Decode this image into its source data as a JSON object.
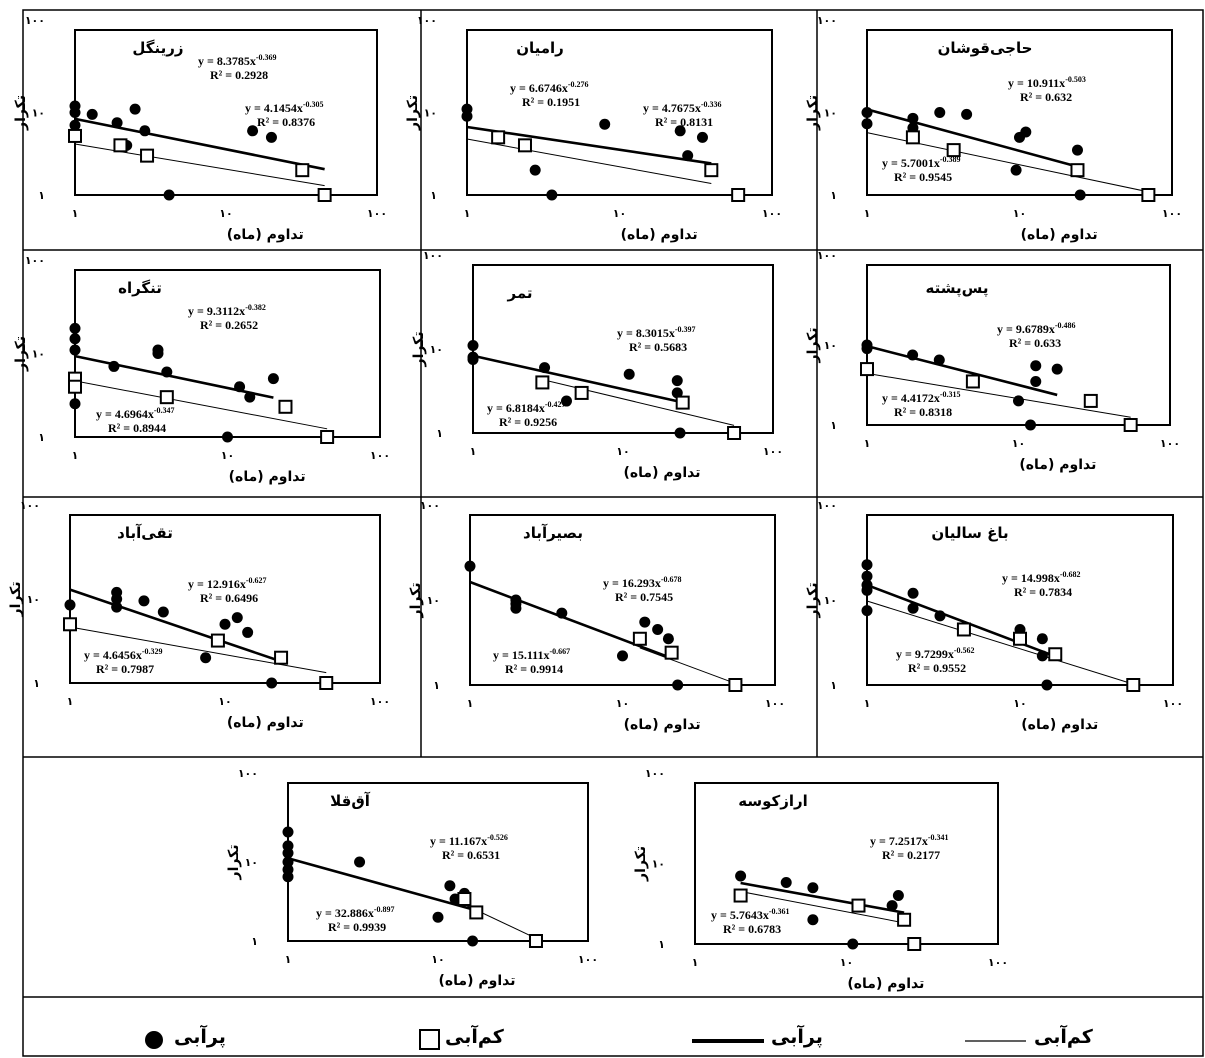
{
  "legend": {
    "wet_points_label": "پرآبی",
    "dry_points_label": "کم‌آبی",
    "wet_line_label": "پرآبی",
    "dry_line_label": "کم‌آبی"
  },
  "chart_data": [
    {
      "type": "scatter",
      "title": "زرینگل",
      "xlabel": "تداوم (ماه)",
      "ylabel": "تکرار",
      "x_ticks": [
        "۱",
        "۱۰",
        "۱۰۰"
      ],
      "y_ticks": [
        "۱",
        "۱۰",
        "۱۰۰"
      ],
      "log_scale": true,
      "xlim": [
        1,
        100
      ],
      "ylim": [
        1,
        100
      ],
      "wet_points": [
        [
          1,
          12
        ],
        [
          1,
          10
        ],
        [
          1,
          7
        ],
        [
          1.3,
          9.5
        ],
        [
          1.9,
          7.5
        ],
        [
          2.2,
          4
        ],
        [
          2.5,
          11
        ],
        [
          2.9,
          6
        ],
        [
          4.2,
          1
        ],
        [
          15,
          6
        ],
        [
          20,
          5
        ]
      ],
      "dry_points": [
        [
          1,
          5.2
        ],
        [
          2,
          4
        ],
        [
          3,
          3
        ],
        [
          32,
          2
        ],
        [
          45,
          1
        ]
      ],
      "wet_fit": {
        "equation": "y = 8.3785x",
        "exponent": "-0.369",
        "r2": "R² = 0.2928",
        "a": 8.3785,
        "b": -0.369,
        "xrange": [
          1,
          45
        ]
      },
      "dry_fit": {
        "equation": "y = 4.1454x",
        "exponent": "-0.305",
        "r2": "R² = 0.8376",
        "a": 4.1454,
        "b": -0.305,
        "xrange": [
          1,
          45
        ]
      }
    },
    {
      "type": "scatter",
      "title": "رامیان",
      "xlabel": "تداوم (ماه)",
      "ylabel": "تکرار",
      "x_ticks": [
        "۱",
        "۱۰",
        "۱۰۰"
      ],
      "y_ticks": [
        "۱",
        "۱۰",
        "۱۰۰"
      ],
      "log_scale": true,
      "xlim": [
        1,
        100
      ],
      "ylim": [
        1,
        100
      ],
      "wet_points": [
        [
          1,
          11
        ],
        [
          1,
          9
        ],
        [
          2.8,
          2
        ],
        [
          3.6,
          1
        ],
        [
          8,
          7.2
        ],
        [
          25,
          6
        ],
        [
          28,
          3
        ],
        [
          35,
          5
        ]
      ],
      "dry_points": [
        [
          1.6,
          5
        ],
        [
          2.4,
          4
        ],
        [
          40,
          2
        ],
        [
          60,
          1
        ]
      ],
      "wet_fit": {
        "equation": "y = 6.6746x",
        "exponent": "-0.276",
        "r2": "R² = 0.1951",
        "a": 6.6746,
        "b": -0.276,
        "xrange": [
          1,
          40
        ]
      },
      "dry_fit": {
        "equation": "y = 4.7675x",
        "exponent": "-0.336",
        "r2": "R² = 0.8131",
        "a": 4.7675,
        "b": -0.336,
        "xrange": [
          1,
          40
        ]
      }
    },
    {
      "type": "scatter",
      "title": "حاجی‌قوشان",
      "xlabel": "تداوم (ماه)",
      "ylabel": "تکرار",
      "x_ticks": [
        "۱",
        "۱۰",
        "۱۰۰"
      ],
      "y_ticks": [
        "۱",
        "۱۰",
        "۱۰۰"
      ],
      "log_scale": true,
      "xlim": [
        1,
        100
      ],
      "ylim": [
        1,
        100
      ],
      "wet_points": [
        [
          1,
          10
        ],
        [
          1,
          7.3
        ],
        [
          2,
          8.5
        ],
        [
          2,
          6.5
        ],
        [
          3,
          10
        ],
        [
          4.5,
          9.5
        ],
        [
          9.5,
          2
        ],
        [
          10,
          5
        ],
        [
          11,
          5.8
        ],
        [
          24,
          3.5
        ],
        [
          25,
          1
        ]
      ],
      "dry_points": [
        [
          2,
          5
        ],
        [
          3.7,
          3.5
        ],
        [
          24,
          2
        ],
        [
          70,
          1
        ]
      ],
      "wet_fit": {
        "equation": "y = 10.911x",
        "exponent": "-0.503",
        "r2": "R² = 0.632",
        "a": 10.911,
        "b": -0.503,
        "xrange": [
          1,
          25
        ]
      },
      "dry_fit": {
        "equation": "y = 5.7001x",
        "exponent": "-0.389",
        "r2": "R² = 0.9545",
        "a": 5.7001,
        "b": -0.389,
        "xrange": [
          1,
          70
        ]
      }
    },
    {
      "type": "scatter",
      "title": "تنگراه",
      "xlabel": "تداوم (ماه)",
      "ylabel": "تکرار",
      "x_ticks": [
        "۱",
        "۱۰",
        "۱۰۰"
      ],
      "y_ticks": [
        "۱",
        "۱۰",
        "۱۰۰"
      ],
      "log_scale": true,
      "xlim": [
        1,
        100
      ],
      "ylim": [
        1,
        100
      ],
      "wet_points": [
        [
          1,
          20
        ],
        [
          1,
          15
        ],
        [
          1,
          11
        ],
        [
          1,
          2.5
        ],
        [
          1.8,
          7
        ],
        [
          3.5,
          11
        ],
        [
          3.5,
          10
        ],
        [
          4,
          6
        ],
        [
          10,
          1
        ],
        [
          12,
          4
        ],
        [
          14,
          3
        ],
        [
          20,
          5
        ]
      ],
      "dry_points": [
        [
          1,
          5
        ],
        [
          1,
          4
        ],
        [
          4,
          3
        ],
        [
          24,
          2.3
        ],
        [
          45,
          1
        ]
      ],
      "wet_fit": {
        "equation": "y = 9.3112x",
        "exponent": "-0.382",
        "r2": "R² = 0.2652",
        "a": 9.3112,
        "b": -0.382,
        "xrange": [
          1,
          20
        ]
      },
      "dry_fit": {
        "equation": "y = 4.6964x",
        "exponent": "-0.347",
        "r2": "R² = 0.8944",
        "a": 4.6964,
        "b": -0.347,
        "xrange": [
          1,
          45
        ]
      }
    },
    {
      "type": "scatter",
      "title": "تمر",
      "xlabel": "تداوم (ماه)",
      "ylabel": "تکرار",
      "x_ticks": [
        "۱",
        "۱۰",
        "۱۰۰"
      ],
      "y_ticks": [
        "۱",
        "۱۰",
        "۱۰۰"
      ],
      "log_scale": true,
      "xlim": [
        1,
        100
      ],
      "ylim": [
        1,
        100
      ],
      "wet_points": [
        [
          1,
          11
        ],
        [
          1,
          8
        ],
        [
          1,
          7.5
        ],
        [
          3,
          6
        ],
        [
          4.2,
          2.4
        ],
        [
          11,
          5
        ],
        [
          23,
          4.2
        ],
        [
          23,
          3
        ],
        [
          24,
          1
        ]
      ],
      "dry_points": [
        [
          2.9,
          4
        ],
        [
          5.3,
          3
        ],
        [
          25,
          2.3
        ],
        [
          55,
          1
        ]
      ],
      "wet_fit": {
        "equation": "y = 8.3015x",
        "exponent": "-0.397",
        "r2": "R² = 0.5683",
        "a": 8.3015,
        "b": -0.397,
        "xrange": [
          1,
          25
        ]
      },
      "dry_fit": {
        "equation": "y = 6.8184x",
        "exponent": "-0.427",
        "r2": "R² = 0.9256",
        "a": 6.8184,
        "b": -0.427,
        "xrange": [
          2.9,
          55
        ]
      }
    },
    {
      "type": "scatter",
      "title": "پس‌پشته",
      "xlabel": "تداوم (ماه)",
      "ylabel": "تکرار",
      "x_ticks": [
        "۱",
        "۱۰",
        "۱۰۰"
      ],
      "y_ticks": [
        "۱",
        "۱۰",
        "۱۰۰"
      ],
      "log_scale": true,
      "xlim": [
        1,
        100
      ],
      "ylim": [
        1,
        100
      ],
      "wet_points": [
        [
          1,
          10
        ],
        [
          1,
          9
        ],
        [
          2,
          7.5
        ],
        [
          3,
          6.5
        ],
        [
          10,
          2
        ],
        [
          12,
          1
        ],
        [
          13,
          5.5
        ],
        [
          13,
          3.5
        ],
        [
          18,
          5
        ]
      ],
      "dry_points": [
        [
          1,
          5
        ],
        [
          5,
          3.5
        ],
        [
          30,
          2
        ],
        [
          55,
          1
        ]
      ],
      "wet_fit": {
        "equation": "y = 9.6789x",
        "exponent": "-0.486",
        "r2": "R² = 0.633",
        "a": 9.6789,
        "b": -0.486,
        "xrange": [
          1,
          18
        ]
      },
      "dry_fit": {
        "equation": "y = 4.4172x",
        "exponent": "-0.315",
        "r2": "R² = 0.8318",
        "a": 4.4172,
        "b": -0.315,
        "xrange": [
          1,
          55
        ]
      }
    },
    {
      "type": "scatter",
      "title": "تقی‌آباد",
      "xlabel": "تداوم (ماه)",
      "ylabel": "تکرار",
      "x_ticks": [
        "۱",
        "۱۰",
        "۱۰۰"
      ],
      "y_ticks": [
        "۱",
        "۱۰",
        "۱۰۰"
      ],
      "log_scale": true,
      "xlim": [
        1,
        100
      ],
      "ylim": [
        1,
        100
      ],
      "wet_points": [
        [
          1,
          8.5
        ],
        [
          2,
          12
        ],
        [
          2,
          10
        ],
        [
          2,
          8
        ],
        [
          3,
          9.5
        ],
        [
          4,
          7
        ],
        [
          7.5,
          2
        ],
        [
          10,
          5
        ],
        [
          12,
          6
        ],
        [
          14,
          4
        ],
        [
          20,
          1
        ]
      ],
      "dry_points": [
        [
          1,
          5
        ],
        [
          9,
          3.2
        ],
        [
          23,
          2
        ],
        [
          45,
          1
        ]
      ],
      "wet_fit": {
        "equation": "y = 12.916x",
        "exponent": "-0.627",
        "r2": "R² = 0.6496",
        "a": 12.916,
        "b": -0.627,
        "xrange": [
          1,
          23
        ]
      },
      "dry_fit": {
        "equation": "y = 4.6456x",
        "exponent": "-0.329",
        "r2": "R² = 0.7987",
        "a": 4.6456,
        "b": -0.329,
        "xrange": [
          1,
          45
        ]
      }
    },
    {
      "type": "scatter",
      "title": "بصیرآباد",
      "xlabel": "تداوم (ماه)",
      "ylabel": "تکرار",
      "x_ticks": [
        "۱",
        "۱۰",
        "۱۰۰"
      ],
      "y_ticks": [
        "۱",
        "۱۰",
        "۱۰۰"
      ],
      "log_scale": true,
      "xlim": [
        1,
        100
      ],
      "ylim": [
        1,
        100
      ],
      "wet_points": [
        [
          1,
          25
        ],
        [
          2,
          10
        ],
        [
          2,
          9
        ],
        [
          2,
          8
        ],
        [
          4,
          7
        ],
        [
          10,
          2.2
        ],
        [
          14,
          5.5
        ],
        [
          17,
          4.5
        ],
        [
          20,
          3.5
        ],
        [
          23,
          1
        ]
      ],
      "dry_points": [
        [
          13,
          3.5
        ],
        [
          21,
          2.4
        ],
        [
          55,
          1
        ]
      ],
      "wet_fit": {
        "equation": "y = 16.293x",
        "exponent": "-0.678",
        "r2": "R² = 0.7545",
        "a": 16.293,
        "b": -0.678,
        "xrange": [
          1,
          21
        ]
      },
      "dry_fit": {
        "equation": "y = 15.111x",
        "exponent": "-0.667",
        "r2": "R² = 0.9914",
        "a": 15.111,
        "b": -0.667,
        "xrange": [
          13,
          55
        ]
      }
    },
    {
      "type": "scatter",
      "title": "باغ سالیان",
      "xlabel": "تداوم (ماه)",
      "ylabel": "تکرار",
      "x_ticks": [
        "۱",
        "۱۰",
        "۱۰۰"
      ],
      "y_ticks": [
        "۱",
        "۱۰",
        "۱۰۰"
      ],
      "log_scale": true,
      "xlim": [
        1,
        100
      ],
      "ylim": [
        1,
        100
      ],
      "wet_points": [
        [
          1,
          26
        ],
        [
          1,
          19
        ],
        [
          1,
          15
        ],
        [
          1,
          13
        ],
        [
          1,
          7.5
        ],
        [
          2,
          12
        ],
        [
          2,
          8
        ],
        [
          3,
          6.5
        ],
        [
          10,
          4.5
        ],
        [
          10,
          4
        ],
        [
          14,
          3.5
        ],
        [
          14,
          2.2
        ],
        [
          15,
          1
        ]
      ],
      "dry_points": [
        [
          4.3,
          4.5
        ],
        [
          10,
          3.5
        ],
        [
          17,
          2.3
        ],
        [
          55,
          1
        ]
      ],
      "wet_fit": {
        "equation": "y = 14.998x",
        "exponent": "-0.682",
        "r2": "R² = 0.7834",
        "a": 14.998,
        "b": -0.682,
        "xrange": [
          1,
          16
        ]
      },
      "dry_fit": {
        "equation": "y = 9.7299x",
        "exponent": "-0.562",
        "r2": "R² = 0.9552",
        "a": 9.7299,
        "b": -0.562,
        "xrange": [
          1,
          55
        ]
      }
    },
    {
      "type": "scatter",
      "title": "آق‌قلا",
      "xlabel": "تداوم (ماه)",
      "ylabel": "تکرار",
      "x_ticks": [
        "۱",
        "۱۰",
        "۱۰۰"
      ],
      "y_ticks": [
        "۱",
        "۱۰",
        "۱۰۰"
      ],
      "log_scale": true,
      "xlim": [
        1,
        100
      ],
      "ylim": [
        1,
        100
      ],
      "wet_points": [
        [
          1,
          24
        ],
        [
          1,
          16
        ],
        [
          1,
          13
        ],
        [
          1,
          10
        ],
        [
          1,
          8
        ],
        [
          1,
          6.5
        ],
        [
          3,
          10
        ],
        [
          10,
          2
        ],
        [
          12,
          5
        ],
        [
          13,
          3.4
        ],
        [
          15,
          4
        ],
        [
          17,
          1
        ]
      ],
      "dry_points": [
        [
          15,
          3.4
        ],
        [
          18,
          2.3
        ],
        [
          45,
          1
        ]
      ],
      "wet_fit": {
        "equation": "y = 11.167x",
        "exponent": "-0.526",
        "r2": "R² = 0.6531",
        "a": 11.167,
        "b": -0.526,
        "xrange": [
          1,
          18
        ]
      },
      "dry_fit": {
        "equation": "y = 32.886x",
        "exponent": "-0.897",
        "r2": "R² = 0.9939",
        "a": 32.886,
        "b": -0.897,
        "xrange": [
          12,
          45
        ]
      }
    },
    {
      "type": "scatter",
      "title": "ارازکوسه",
      "xlabel": "تداوم (ماه)",
      "ylabel": "تکرار",
      "x_ticks": [
        "۱",
        "۱۰",
        "۱۰۰"
      ],
      "y_ticks": [
        "۱",
        "۱۰",
        "۱۰۰"
      ],
      "log_scale": true,
      "xlim": [
        1,
        100
      ],
      "ylim": [
        1,
        100
      ],
      "wet_points": [
        [
          2,
          7
        ],
        [
          4,
          5.8
        ],
        [
          6,
          5
        ],
        [
          6,
          2
        ],
        [
          11,
          1
        ],
        [
          20,
          3
        ],
        [
          22,
          4
        ]
      ],
      "dry_points": [
        [
          2,
          4
        ],
        [
          12,
          3
        ],
        [
          24,
          2
        ],
        [
          28,
          1
        ]
      ],
      "wet_fit": {
        "equation": "y = 7.2517x",
        "exponent": "-0.341",
        "r2": "R² = 0.2177",
        "a": 7.2517,
        "b": -0.341,
        "xrange": [
          2,
          24
        ]
      },
      "dry_fit": {
        "equation": "y = 5.7643x",
        "exponent": "-0.361",
        "r2": "R² = 0.6783",
        "a": 5.7643,
        "b": -0.361,
        "xrange": [
          2,
          24
        ]
      }
    }
  ]
}
